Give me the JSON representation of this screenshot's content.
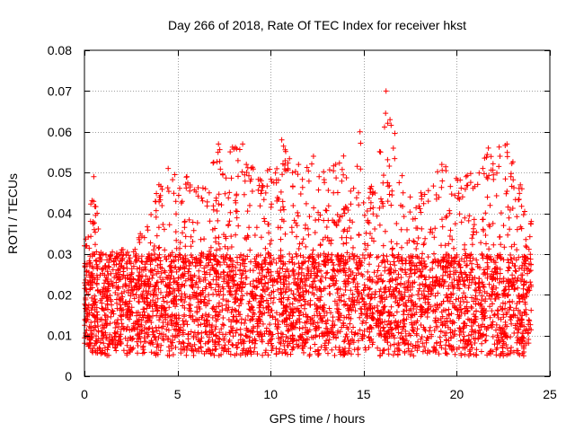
{
  "chart_data": {
    "type": "scatter",
    "title": "Day 266 of 2018, Rate Of TEC Index for receiver hkst",
    "xlabel": "GPS time / hours",
    "ylabel": "ROTI / TECUs",
    "xlim": [
      0,
      25
    ],
    "ylim": [
      0,
      0.08
    ],
    "xticks": [
      0,
      5,
      10,
      15,
      20,
      25
    ],
    "xtick_labels": [
      "0",
      "5",
      "10",
      "15",
      "20",
      "25"
    ],
    "yticks": [
      0,
      0.01,
      0.02,
      0.03,
      0.04,
      0.05,
      0.06,
      0.07,
      0.08
    ],
    "ytick_labels": [
      "0",
      "0.01",
      "0.02",
      "0.03",
      "0.04",
      "0.05",
      "0.06",
      "0.07",
      "0.08"
    ],
    "grid": true,
    "marker": "+",
    "marker_color": "#ff0000",
    "series": [
      {
        "name": "ROTI",
        "x_range": [
          0,
          24
        ],
        "typical_range": [
          0.005,
          0.03
        ],
        "envelope": [
          {
            "x": 0.0,
            "ymax": 0.032
          },
          {
            "x": 0.5,
            "ymax": 0.049
          },
          {
            "x": 1.0,
            "ymax": 0.03
          },
          {
            "x": 2.0,
            "ymax": 0.031
          },
          {
            "x": 3.0,
            "ymax": 0.035
          },
          {
            "x": 4.0,
            "ymax": 0.047
          },
          {
            "x": 4.5,
            "ymax": 0.051
          },
          {
            "x": 5.5,
            "ymax": 0.049
          },
          {
            "x": 6.5,
            "ymax": 0.046
          },
          {
            "x": 7.2,
            "ymax": 0.057
          },
          {
            "x": 8.5,
            "ymax": 0.057
          },
          {
            "x": 9.5,
            "ymax": 0.048
          },
          {
            "x": 10.6,
            "ymax": 0.058
          },
          {
            "x": 11.5,
            "ymax": 0.052
          },
          {
            "x": 12.3,
            "ymax": 0.054
          },
          {
            "x": 13.5,
            "ymax": 0.052
          },
          {
            "x": 14.8,
            "ymax": 0.06
          },
          {
            "x": 15.5,
            "ymax": 0.045
          },
          {
            "x": 16.2,
            "ymax": 0.07
          },
          {
            "x": 17.5,
            "ymax": 0.044
          },
          {
            "x": 19.2,
            "ymax": 0.052
          },
          {
            "x": 20.5,
            "ymax": 0.049
          },
          {
            "x": 21.7,
            "ymax": 0.056
          },
          {
            "x": 22.7,
            "ymax": 0.057
          },
          {
            "x": 23.5,
            "ymax": 0.046
          },
          {
            "x": 24.0,
            "ymax": 0.038
          }
        ]
      }
    ]
  }
}
